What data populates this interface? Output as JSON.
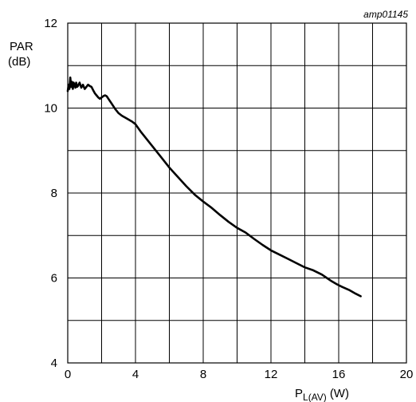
{
  "chart_data": {
    "type": "line",
    "reference": "amp01145",
    "ylabel_line1": "PAR",
    "ylabel_line2": "(dB)",
    "xlabel_main": "P",
    "xlabel_sub": "L(AV)",
    "xlabel_unit": "(W)",
    "xlim": [
      0,
      20
    ],
    "ylim": [
      4,
      12
    ],
    "xticks": [
      0,
      4,
      8,
      12,
      16,
      20
    ],
    "yticks": [
      4,
      6,
      8,
      10,
      12
    ],
    "grid": true,
    "series": [
      {
        "x": [
          0.0,
          0.05,
          0.1,
          0.15,
          0.2,
          0.25,
          0.3,
          0.35,
          0.4,
          0.45,
          0.5,
          0.55,
          0.6,
          0.7,
          0.8,
          0.9,
          1.0,
          1.1,
          1.2,
          1.3,
          1.4,
          1.5,
          1.6,
          1.7,
          1.8,
          1.9,
          2.0,
          2.1,
          2.2,
          2.3,
          2.4,
          2.6,
          2.8,
          3.0,
          3.2,
          3.5,
          3.8,
          4.0,
          4.3,
          4.6,
          5.0,
          5.5,
          6.0,
          6.5,
          7.0,
          7.5,
          8.0,
          8.5,
          9.0,
          9.5,
          10.0,
          10.5,
          11.0,
          11.5,
          12.0,
          12.5,
          13.0,
          13.5,
          14.0,
          14.5,
          15.0,
          15.3,
          15.6,
          15.9,
          16.2,
          16.6,
          17.0,
          17.3
        ],
        "y": [
          10.4,
          10.55,
          10.45,
          10.72,
          10.5,
          10.62,
          10.45,
          10.6,
          10.55,
          10.48,
          10.6,
          10.5,
          10.52,
          10.6,
          10.48,
          10.55,
          10.45,
          10.5,
          10.55,
          10.52,
          10.5,
          10.42,
          10.35,
          10.3,
          10.25,
          10.22,
          10.25,
          10.28,
          10.3,
          10.28,
          10.22,
          10.1,
          9.98,
          9.88,
          9.82,
          9.75,
          9.68,
          9.62,
          9.45,
          9.3,
          9.1,
          8.85,
          8.6,
          8.38,
          8.16,
          7.96,
          7.8,
          7.65,
          7.48,
          7.32,
          7.18,
          7.07,
          6.92,
          6.78,
          6.65,
          6.55,
          6.45,
          6.35,
          6.25,
          6.18,
          6.08,
          6.0,
          5.92,
          5.85,
          5.79,
          5.72,
          5.63,
          5.57
        ]
      }
    ]
  }
}
